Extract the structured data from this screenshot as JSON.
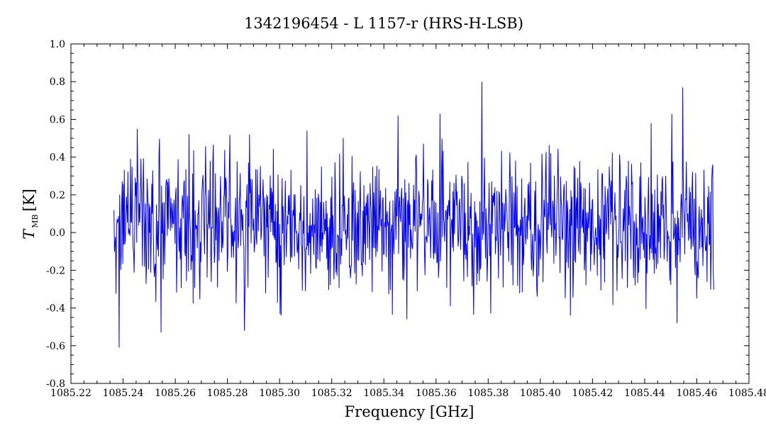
{
  "chart_data": {
    "type": "line",
    "title": "1342196454 - L 1157-r (HRS-H-LSB)",
    "xlabel": "Frequency [GHz]",
    "ylabel_symbol": "T",
    "ylabel_subscript": "MB",
    "ylabel_unit": "[K]",
    "xlim": [
      1085.22,
      1085.48
    ],
    "ylim": [
      -0.8,
      1.0
    ],
    "x_ticks": [
      "1085.22",
      "1085.24",
      "1085.26",
      "1085.28",
      "1085.30",
      "1085.32",
      "1085.34",
      "1085.36",
      "1085.38",
      "1085.40",
      "1085.42",
      "1085.44",
      "1085.46",
      "1085.48"
    ],
    "y_ticks": [
      "-0.8",
      "-0.6",
      "-0.4",
      "-0.2",
      "0.0",
      "0.2",
      "0.4",
      "0.6",
      "0.8",
      "1.0"
    ],
    "grid": false,
    "series": [
      {
        "color": "#0000ff",
        "x_start": 1085.2365,
        "x_end": 1085.4665,
        "n_points": 1160,
        "noise_rms": 0.19,
        "baseline": 0.04,
        "notable_points": [
          {
            "x": 1085.2385,
            "y": -0.61
          },
          {
            "x": 1085.2545,
            "y": -0.53
          },
          {
            "x": 1085.2865,
            "y": -0.52
          },
          {
            "x": 1085.3005,
            "y": -0.44
          },
          {
            "x": 1085.3775,
            "y": 0.8
          },
          {
            "x": 1085.3795,
            "y": -0.26
          },
          {
            "x": 1085.4545,
            "y": 0.77
          },
          {
            "x": 1085.4525,
            "y": -0.48
          },
          {
            "x": 1085.4115,
            "y": -0.44
          },
          {
            "x": 1085.3615,
            "y": 0.63
          },
          {
            "x": 1085.3455,
            "y": 0.62
          },
          {
            "x": 1085.4505,
            "y": 0.63
          },
          {
            "x": 1085.2885,
            "y": 0.52
          },
          {
            "x": 1085.3105,
            "y": 0.54
          },
          {
            "x": 1085.2455,
            "y": 0.55
          }
        ]
      }
    ]
  }
}
